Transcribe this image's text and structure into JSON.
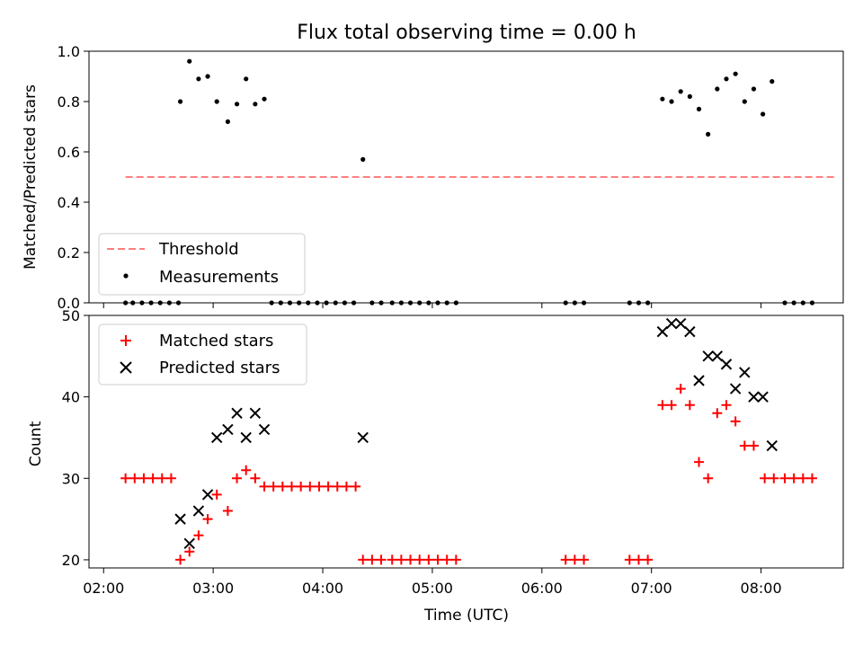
{
  "title": "Flux total observing time = 0.00 h",
  "colors": {
    "threshold": "#ff7f7f",
    "measurement": "#000000",
    "matched": "#ff0000",
    "predicted": "#000000"
  },
  "chart_data": [
    {
      "type": "scatter",
      "ylabel": "Matched/Predicted stars",
      "xlabel": "",
      "ylim": [
        0.0,
        1.0
      ],
      "xlim": [
        "01:52",
        "08:45"
      ],
      "yticks": [
        "0.0",
        "0.2",
        "0.4",
        "0.6",
        "0.8",
        "1.0"
      ],
      "xtick_labels_visible": false,
      "legend_position": "lower-left",
      "legend": [
        "Threshold",
        "Measurements"
      ],
      "threshold": {
        "name": "Threshold",
        "value": 0.5,
        "x": [
          "02:12",
          "08:40"
        ],
        "style": "dashed"
      },
      "series": [
        {
          "name": "Measurements",
          "points": [
            {
              "x": "02:12",
              "y": 0.0
            },
            {
              "x": "02:16",
              "y": 0.0
            },
            {
              "x": "02:21",
              "y": 0.0
            },
            {
              "x": "02:26",
              "y": 0.0
            },
            {
              "x": "02:31",
              "y": 0.0
            },
            {
              "x": "02:36",
              "y": 0.0
            },
            {
              "x": "02:41",
              "y": 0.0
            },
            {
              "x": "02:42",
              "y": 0.8
            },
            {
              "x": "02:47",
              "y": 0.96
            },
            {
              "x": "02:52",
              "y": 0.89
            },
            {
              "x": "02:57",
              "y": 0.9
            },
            {
              "x": "03:02",
              "y": 0.8
            },
            {
              "x": "03:08",
              "y": 0.72
            },
            {
              "x": "03:13",
              "y": 0.79
            },
            {
              "x": "03:18",
              "y": 0.89
            },
            {
              "x": "03:23",
              "y": 0.79
            },
            {
              "x": "03:28",
              "y": 0.81
            },
            {
              "x": "03:32",
              "y": 0.0
            },
            {
              "x": "03:37",
              "y": 0.0
            },
            {
              "x": "03:42",
              "y": 0.0
            },
            {
              "x": "03:47",
              "y": 0.0
            },
            {
              "x": "03:52",
              "y": 0.0
            },
            {
              "x": "03:57",
              "y": 0.0
            },
            {
              "x": "04:02",
              "y": 0.0
            },
            {
              "x": "04:07",
              "y": 0.0
            },
            {
              "x": "04:12",
              "y": 0.0
            },
            {
              "x": "04:17",
              "y": 0.0
            },
            {
              "x": "04:22",
              "y": 0.57
            },
            {
              "x": "04:27",
              "y": 0.0
            },
            {
              "x": "04:32",
              "y": 0.0
            },
            {
              "x": "04:38",
              "y": 0.0
            },
            {
              "x": "04:43",
              "y": 0.0
            },
            {
              "x": "04:48",
              "y": 0.0
            },
            {
              "x": "04:53",
              "y": 0.0
            },
            {
              "x": "04:58",
              "y": 0.0
            },
            {
              "x": "05:03",
              "y": 0.0
            },
            {
              "x": "05:08",
              "y": 0.0
            },
            {
              "x": "05:13",
              "y": 0.0
            },
            {
              "x": "06:13",
              "y": 0.0
            },
            {
              "x": "06:18",
              "y": 0.0
            },
            {
              "x": "06:23",
              "y": 0.0
            },
            {
              "x": "06:48",
              "y": 0.0
            },
            {
              "x": "06:53",
              "y": 0.0
            },
            {
              "x": "06:58",
              "y": 0.0
            },
            {
              "x": "07:06",
              "y": 0.81
            },
            {
              "x": "07:11",
              "y": 0.8
            },
            {
              "x": "07:16",
              "y": 0.84
            },
            {
              "x": "07:21",
              "y": 0.82
            },
            {
              "x": "07:26",
              "y": 0.77
            },
            {
              "x": "07:31",
              "y": 0.67
            },
            {
              "x": "07:36",
              "y": 0.85
            },
            {
              "x": "07:41",
              "y": 0.89
            },
            {
              "x": "07:46",
              "y": 0.91
            },
            {
              "x": "07:51",
              "y": 0.8
            },
            {
              "x": "07:56",
              "y": 0.85
            },
            {
              "x": "08:01",
              "y": 0.75
            },
            {
              "x": "08:06",
              "y": 0.88
            },
            {
              "x": "08:13",
              "y": 0.0
            },
            {
              "x": "08:18",
              "y": 0.0
            },
            {
              "x": "08:23",
              "y": 0.0
            },
            {
              "x": "08:28",
              "y": 0.0
            }
          ]
        }
      ]
    },
    {
      "type": "scatter",
      "ylabel": "Count",
      "xlabel": "Time (UTC)",
      "ylim": [
        19,
        50
      ],
      "xlim": [
        "01:52",
        "08:45"
      ],
      "yticks": [
        "20",
        "30",
        "40",
        "50"
      ],
      "xticks": [
        "02:00",
        "03:00",
        "04:00",
        "05:00",
        "06:00",
        "07:00",
        "08:00"
      ],
      "legend_position": "upper-left",
      "legend": [
        "Matched stars",
        "Predicted stars"
      ],
      "series": [
        {
          "name": "Matched stars",
          "marker": "+",
          "points": [
            {
              "x": "02:12",
              "y": 30
            },
            {
              "x": "02:17",
              "y": 30
            },
            {
              "x": "02:22",
              "y": 30
            },
            {
              "x": "02:27",
              "y": 30
            },
            {
              "x": "02:32",
              "y": 30
            },
            {
              "x": "02:37",
              "y": 30
            },
            {
              "x": "02:42",
              "y": 20
            },
            {
              "x": "02:47",
              "y": 21
            },
            {
              "x": "02:52",
              "y": 23
            },
            {
              "x": "02:57",
              "y": 25
            },
            {
              "x": "03:02",
              "y": 28
            },
            {
              "x": "03:08",
              "y": 26
            },
            {
              "x": "03:13",
              "y": 30
            },
            {
              "x": "03:18",
              "y": 31
            },
            {
              "x": "03:23",
              "y": 30
            },
            {
              "x": "03:28",
              "y": 29
            },
            {
              "x": "03:33",
              "y": 29
            },
            {
              "x": "03:38",
              "y": 29
            },
            {
              "x": "03:43",
              "y": 29
            },
            {
              "x": "03:48",
              "y": 29
            },
            {
              "x": "03:53",
              "y": 29
            },
            {
              "x": "03:58",
              "y": 29
            },
            {
              "x": "04:03",
              "y": 29
            },
            {
              "x": "04:08",
              "y": 29
            },
            {
              "x": "04:13",
              "y": 29
            },
            {
              "x": "04:18",
              "y": 29
            },
            {
              "x": "04:22",
              "y": 20
            },
            {
              "x": "04:27",
              "y": 20
            },
            {
              "x": "04:32",
              "y": 20
            },
            {
              "x": "04:38",
              "y": 20
            },
            {
              "x": "04:43",
              "y": 20
            },
            {
              "x": "04:48",
              "y": 20
            },
            {
              "x": "04:53",
              "y": 20
            },
            {
              "x": "04:58",
              "y": 20
            },
            {
              "x": "05:03",
              "y": 20
            },
            {
              "x": "05:08",
              "y": 20
            },
            {
              "x": "05:13",
              "y": 20
            },
            {
              "x": "06:13",
              "y": 20
            },
            {
              "x": "06:18",
              "y": 20
            },
            {
              "x": "06:23",
              "y": 20
            },
            {
              "x": "06:48",
              "y": 20
            },
            {
              "x": "06:53",
              "y": 20
            },
            {
              "x": "06:58",
              "y": 20
            },
            {
              "x": "07:06",
              "y": 39
            },
            {
              "x": "07:11",
              "y": 39
            },
            {
              "x": "07:16",
              "y": 41
            },
            {
              "x": "07:21",
              "y": 39
            },
            {
              "x": "07:26",
              "y": 32
            },
            {
              "x": "07:31",
              "y": 30
            },
            {
              "x": "07:36",
              "y": 38
            },
            {
              "x": "07:41",
              "y": 39
            },
            {
              "x": "07:46",
              "y": 37
            },
            {
              "x": "07:51",
              "y": 34
            },
            {
              "x": "07:56",
              "y": 34
            },
            {
              "x": "08:02",
              "y": 30
            },
            {
              "x": "08:07",
              "y": 30
            },
            {
              "x": "08:13",
              "y": 30
            },
            {
              "x": "08:18",
              "y": 30
            },
            {
              "x": "08:23",
              "y": 30
            },
            {
              "x": "08:28",
              "y": 30
            }
          ]
        },
        {
          "name": "Predicted stars",
          "marker": "x",
          "points": [
            {
              "x": "02:42",
              "y": 25
            },
            {
              "x": "02:47",
              "y": 22
            },
            {
              "x": "02:52",
              "y": 26
            },
            {
              "x": "02:57",
              "y": 28
            },
            {
              "x": "03:02",
              "y": 35
            },
            {
              "x": "03:08",
              "y": 36
            },
            {
              "x": "03:13",
              "y": 38
            },
            {
              "x": "03:18",
              "y": 35
            },
            {
              "x": "03:23",
              "y": 38
            },
            {
              "x": "03:28",
              "y": 36
            },
            {
              "x": "04:22",
              "y": 35
            },
            {
              "x": "07:06",
              "y": 48
            },
            {
              "x": "07:11",
              "y": 49
            },
            {
              "x": "07:16",
              "y": 49
            },
            {
              "x": "07:21",
              "y": 48
            },
            {
              "x": "07:26",
              "y": 42
            },
            {
              "x": "07:31",
              "y": 45
            },
            {
              "x": "07:36",
              "y": 45
            },
            {
              "x": "07:41",
              "y": 44
            },
            {
              "x": "07:46",
              "y": 41
            },
            {
              "x": "07:51",
              "y": 43
            },
            {
              "x": "07:56",
              "y": 40
            },
            {
              "x": "08:01",
              "y": 40
            },
            {
              "x": "08:06",
              "y": 34
            }
          ]
        }
      ]
    }
  ]
}
